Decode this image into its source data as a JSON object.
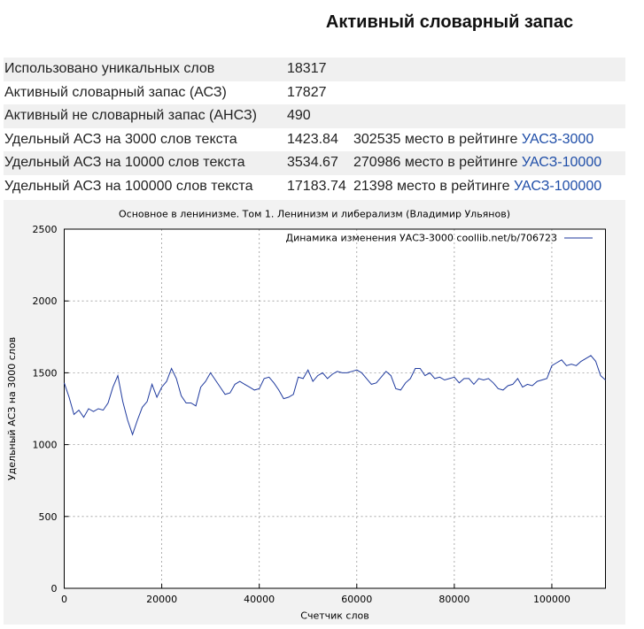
{
  "page": {
    "title": "Активный словарный запас"
  },
  "stats": [
    {
      "label": "Использовано уникальных слов",
      "value": "18317",
      "rank": "",
      "link": ""
    },
    {
      "label": "Активный словарный запас (АСЗ)",
      "value": "17827",
      "rank": "",
      "link": ""
    },
    {
      "label": "Активный не словарный запас (АНСЗ)",
      "value": "490",
      "rank": "",
      "link": ""
    },
    {
      "label": "Удельный АСЗ на 3000 слов текста",
      "value": "1423.84",
      "rank": "302535 место в рейтинге",
      "link": "УАСЗ-3000"
    },
    {
      "label": "Удельный АСЗ на 10000 слов текста",
      "value": "3534.67",
      "rank": "270986 место в рейтинге",
      "link": "УАСЗ-10000"
    },
    {
      "label": "Удельный АСЗ на 100000 слов текста",
      "value": "17183.74",
      "rank": "21398 место в рейтинге",
      "link": "УАСЗ-100000"
    }
  ],
  "chart_data": {
    "type": "line",
    "title": "Основное в ленинизме. Том 1. Ленинизм и либерализм (Владимир Ульянов)",
    "xlabel": "Счетчик слов",
    "ylabel": "Удельный АСЗ на 3000 слов",
    "xlim": [
      0,
      111000
    ],
    "ylim": [
      0,
      2500
    ],
    "xticks": [
      0,
      20000,
      40000,
      60000,
      80000,
      100000
    ],
    "yticks": [
      0,
      500,
      1000,
      1500,
      2000,
      2500
    ],
    "grid": true,
    "legend_position": "top-right",
    "series": [
      {
        "name": "Динамика изменения УАСЗ-3000 coollib.net/b/706723",
        "color": "#1f3a9e",
        "x": [
          0,
          1000,
          2000,
          3000,
          4000,
          5000,
          6000,
          7000,
          8000,
          9000,
          10000,
          11000,
          12000,
          13000,
          14000,
          15000,
          16000,
          17000,
          18000,
          19000,
          20000,
          21000,
          22000,
          23000,
          24000,
          25000,
          26000,
          27000,
          28000,
          29000,
          30000,
          31000,
          32000,
          33000,
          34000,
          35000,
          36000,
          37000,
          38000,
          39000,
          40000,
          41000,
          42000,
          43000,
          44000,
          45000,
          46000,
          47000,
          48000,
          49000,
          50000,
          51000,
          52000,
          53000,
          54000,
          55000,
          56000,
          57000,
          58000,
          59000,
          60000,
          61000,
          62000,
          63000,
          64000,
          65000,
          66000,
          67000,
          68000,
          69000,
          70000,
          71000,
          72000,
          73000,
          74000,
          75000,
          76000,
          77000,
          78000,
          79000,
          80000,
          81000,
          82000,
          83000,
          84000,
          85000,
          86000,
          87000,
          88000,
          89000,
          90000,
          91000,
          92000,
          93000,
          94000,
          95000,
          96000,
          97000,
          98000,
          99000,
          100000,
          101000,
          102000,
          103000,
          104000,
          105000,
          106000,
          107000,
          108000,
          109000,
          110000,
          111000
        ],
        "y": [
          1430,
          1330,
          1210,
          1240,
          1190,
          1250,
          1230,
          1250,
          1240,
          1290,
          1400,
          1480,
          1300,
          1170,
          1070,
          1170,
          1260,
          1300,
          1420,
          1330,
          1400,
          1440,
          1530,
          1460,
          1340,
          1290,
          1290,
          1270,
          1400,
          1440,
          1500,
          1450,
          1400,
          1350,
          1360,
          1420,
          1440,
          1420,
          1400,
          1380,
          1390,
          1460,
          1470,
          1430,
          1380,
          1320,
          1330,
          1350,
          1470,
          1460,
          1520,
          1440,
          1480,
          1500,
          1460,
          1490,
          1510,
          1500,
          1500,
          1510,
          1520,
          1500,
          1460,
          1420,
          1430,
          1470,
          1510,
          1480,
          1390,
          1380,
          1430,
          1460,
          1530,
          1530,
          1480,
          1500,
          1460,
          1470,
          1450,
          1460,
          1470,
          1430,
          1460,
          1460,
          1420,
          1460,
          1450,
          1460,
          1430,
          1390,
          1380,
          1410,
          1420,
          1460,
          1400,
          1420,
          1410,
          1440,
          1450,
          1460,
          1550,
          1570,
          1590,
          1550,
          1560,
          1550,
          1580,
          1600,
          1620,
          1580,
          1480,
          1450
        ]
      }
    ]
  }
}
